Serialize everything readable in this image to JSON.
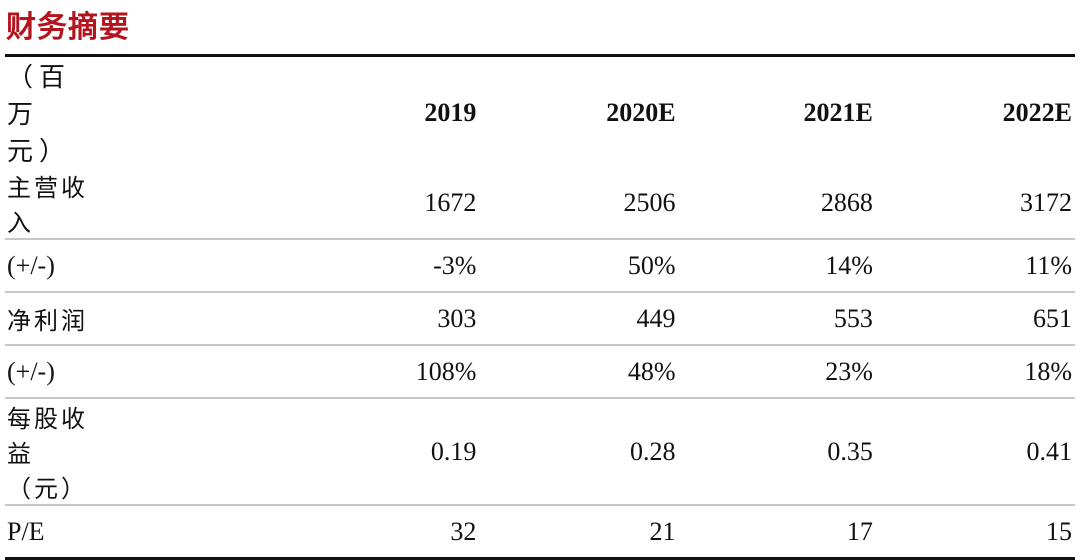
{
  "title": "财务摘要",
  "table": {
    "header": [
      "（百万元）",
      "2019",
      "2020E",
      "2021E",
      "2022E"
    ],
    "rows": [
      [
        "主营收入",
        "1672",
        "2506",
        "2868",
        "3172"
      ],
      [
        "(+/-)",
        "-3%",
        "50%",
        "14%",
        "11%"
      ],
      [
        "净利润",
        "303",
        "449",
        "553",
        "651"
      ],
      [
        "(+/-)",
        "108%",
        "48%",
        "23%",
        "18%"
      ],
      [
        "每股收益（元）",
        "0.19",
        "0.28",
        "0.35",
        "0.41"
      ],
      [
        "P/E",
        "32",
        "21",
        "17",
        "15"
      ]
    ]
  },
  "colors": {
    "title": "#b3141d"
  }
}
